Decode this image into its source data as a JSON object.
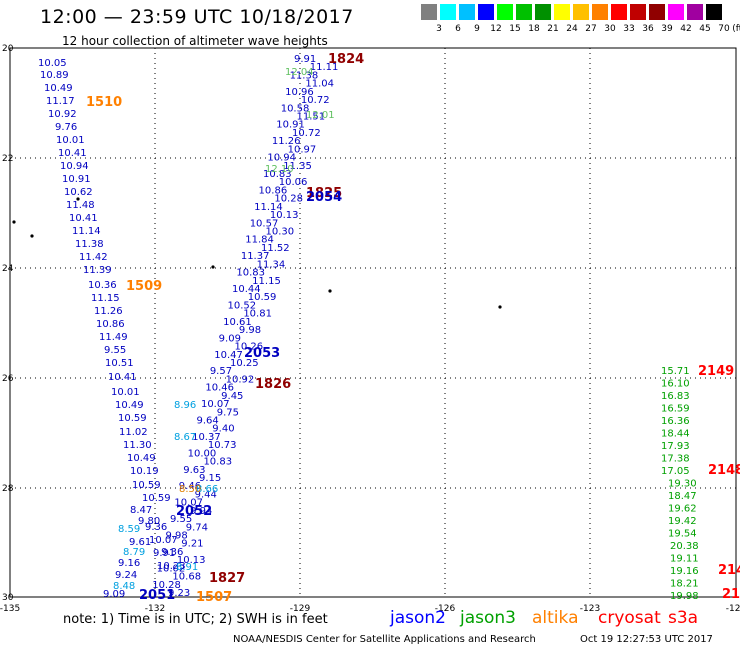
{
  "header": {
    "title": "12:00 — 23:59 UTC 10/18/2017",
    "subtitle": "12 hour collection of altimeter wave heights"
  },
  "colorbar": {
    "unit": "(ft)",
    "labels": [
      "3",
      "6",
      "9",
      "12",
      "15",
      "18",
      "21",
      "24",
      "27",
      "30",
      "33",
      "36",
      "39",
      "42",
      "45",
      "70"
    ],
    "colors": [
      "#808080",
      "#00ffff",
      "#00c0ff",
      "#0000ff",
      "#00ff00",
      "#00c000",
      "#009000",
      "#ffff00",
      "#ffc000",
      "#ff8000",
      "#ff0000",
      "#c00000",
      "#900000",
      "#ff00ff",
      "#a000a0",
      "#000000"
    ]
  },
  "axes": {
    "lon_ticks": [
      "-135",
      "-132",
      "-129",
      "-126",
      "-123",
      "-120"
    ],
    "lat_ticks": [
      "20",
      "22",
      "24",
      "26",
      "28",
      "30"
    ]
  },
  "tracks": {
    "jason2_left": [
      "10.05",
      "10.89",
      "10.49",
      "11.17",
      "10.92",
      "9.76",
      "10.01",
      "10.41",
      "10.94",
      "10.91",
      "10.62",
      "11.48",
      "10.41",
      "11.14",
      "11.38",
      "11.42",
      "11.39",
      "10.36",
      "11.15",
      "11.26",
      "10.86",
      "11.49",
      "9.55",
      "10.51",
      "10.41",
      "10.01",
      "10.49",
      "10.59",
      "11.02",
      "11.30",
      "10.49",
      "10.19",
      "10.59",
      "10.59",
      "8.47",
      "9.80",
      "9.61",
      "9.16",
      "9.24",
      "9.09"
    ],
    "jason2_mid": [
      "9.91",
      "11.11",
      "11.38",
      "11.04",
      "10.96",
      "10.72",
      "10.58",
      "11.51",
      "10.91",
      "10.72",
      "11.26",
      "10.97",
      "10.94",
      "11.35",
      "10.83",
      "10.06",
      "10.86",
      "10.28",
      "11.14",
      "10.13",
      "10.57",
      "10.30",
      "11.84",
      "11.52",
      "11.37",
      "11.34",
      "10.83",
      "11.15",
      "10.44",
      "10.59",
      "10.52",
      "10.81",
      "10.61",
      "9.98",
      "9.09",
      "10.26",
      "10.47",
      "10.25",
      "9.57",
      "10.92",
      "10.46",
      "9.45",
      "10.07",
      "9.75",
      "9.64",
      "9.40",
      "10.37",
      "10.73",
      "10.00",
      "10.83",
      "9.63",
      "9.15",
      "9.46",
      "9.44",
      "10.07",
      "9.94",
      "9.55",
      "9.74",
      "9.98",
      "9.21",
      "9.36",
      "10.13",
      "10.02",
      "10.68",
      "10.28",
      "9.23"
    ],
    "jason2_mid2": [
      "9.36",
      "10.07",
      "9.91",
      "10.23"
    ],
    "jason3_right": [
      "15.71",
      "16.10",
      "16.83",
      "16.59",
      "16.36",
      "18.44",
      "17.93",
      "17.38",
      "17.05",
      "19.30",
      "18.47",
      "19.62",
      "19.42",
      "19.54",
      "20.38",
      "19.11",
      "19.16",
      "18.21",
      "19.98"
    ],
    "jason3_mid": [
      "12.04",
      "12.01",
      "12.10"
    ],
    "cyan_vals": [
      "8.96",
      "8.67",
      "8.59",
      "8.79",
      "8.48",
      "8.66",
      "8.91"
    ],
    "orange_vals": [
      "8.50"
    ]
  },
  "labels": {
    "times": [
      {
        "text": "1824",
        "color": "#900000"
      },
      {
        "text": "1510",
        "color": "#ff8000"
      },
      {
        "text": "1825",
        "color": "#900000"
      },
      {
        "text": "2054",
        "color": "#0000c0"
      },
      {
        "text": "1509",
        "color": "#ff8000"
      },
      {
        "text": "2053",
        "color": "#0000c0"
      },
      {
        "text": "1826",
        "color": "#900000"
      },
      {
        "text": "2149",
        "color": "#ff0000"
      },
      {
        "text": "2148",
        "color": "#ff0000"
      },
      {
        "text": "2052",
        "color": "#0000c0"
      },
      {
        "text": "1827",
        "color": "#900000"
      },
      {
        "text": "2051",
        "color": "#0000c0"
      },
      {
        "text": "1507",
        "color": "#ff8000"
      },
      {
        "text": "214",
        "color": "#ff0000"
      },
      {
        "text": "21-",
        "color": "#ff0000"
      }
    ]
  },
  "footer": {
    "note": "note: 1) Time is in UTC; 2) SWH is in feet",
    "legend": [
      {
        "name": "jason2",
        "color": "#0000ff"
      },
      {
        "name": "jason3",
        "color": "#00a000"
      },
      {
        "name": "altika",
        "color": "#ff8000"
      },
      {
        "name": "cryosat",
        "color": "#ff0000"
      },
      {
        "name": "s3a",
        "color": "#ff0000"
      }
    ],
    "credit": "NOAA/NESDIS Center for Satellite Applications and Research",
    "timestamp": "Oct 19 12:27:53 UTC 2017"
  }
}
